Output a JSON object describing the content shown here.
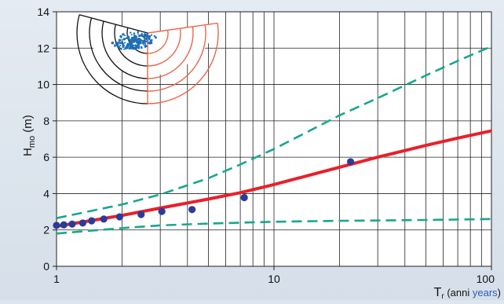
{
  "chart_data": {
    "type": "line",
    "x_scale": "log",
    "xlim": [
      1,
      100
    ],
    "ylim": [
      0,
      14
    ],
    "y_ticks": [
      0,
      2,
      4,
      6,
      8,
      10,
      12,
      14
    ],
    "x_tick_labels": [
      "1",
      "10",
      "100"
    ],
    "ylabel": "Hmo (m)",
    "ylabel_main": "H",
    "ylabel_sub": "mo",
    "ylabel_unit": " (m)",
    "xlabel_main": "T",
    "xlabel_sub": "r",
    "xlabel_anni": "(anni ",
    "xlabel_years": "years",
    "xlabel_close": ")",
    "grid": true,
    "colors": {
      "fit": "#e8202a",
      "confidence": "#17a78e",
      "points": "#2b3b9a",
      "years_text": "#2a5fbf",
      "inset_scatter": "#1f6fb5",
      "inset_black": "#111111",
      "inset_orange": "#e8664a"
    },
    "series": [
      {
        "style": "solid-red",
        "x": [
          1,
          1.5,
          2,
          3,
          5,
          7,
          10,
          15,
          20,
          30,
          50,
          70,
          100
        ],
        "y": [
          2.2,
          2.55,
          2.8,
          3.2,
          3.7,
          4.05,
          4.5,
          5.05,
          5.45,
          6.0,
          6.65,
          7.05,
          7.45
        ]
      },
      {
        "style": "dashed-upper",
        "x": [
          1,
          2,
          3,
          5,
          7,
          10,
          20,
          30,
          50,
          70,
          100
        ],
        "y": [
          2.65,
          3.4,
          3.95,
          4.85,
          5.6,
          6.45,
          8.3,
          9.25,
          10.5,
          11.3,
          12.1
        ]
      },
      {
        "style": "dashed-lower",
        "x": [
          1,
          2,
          3,
          5,
          7,
          10,
          20,
          30,
          50,
          70,
          100
        ],
        "y": [
          1.8,
          2.1,
          2.25,
          2.35,
          2.4,
          2.45,
          2.5,
          2.52,
          2.55,
          2.57,
          2.6
        ]
      },
      {
        "style": "points",
        "x": [
          1.0,
          1.08,
          1.18,
          1.32,
          1.45,
          1.65,
          1.95,
          2.45,
          3.05,
          4.2,
          7.3,
          22.5
        ],
        "y": [
          2.25,
          2.28,
          2.32,
          2.38,
          2.5,
          2.6,
          2.72,
          2.85,
          3.02,
          3.12,
          3.78,
          5.75
        ]
      }
    ]
  }
}
